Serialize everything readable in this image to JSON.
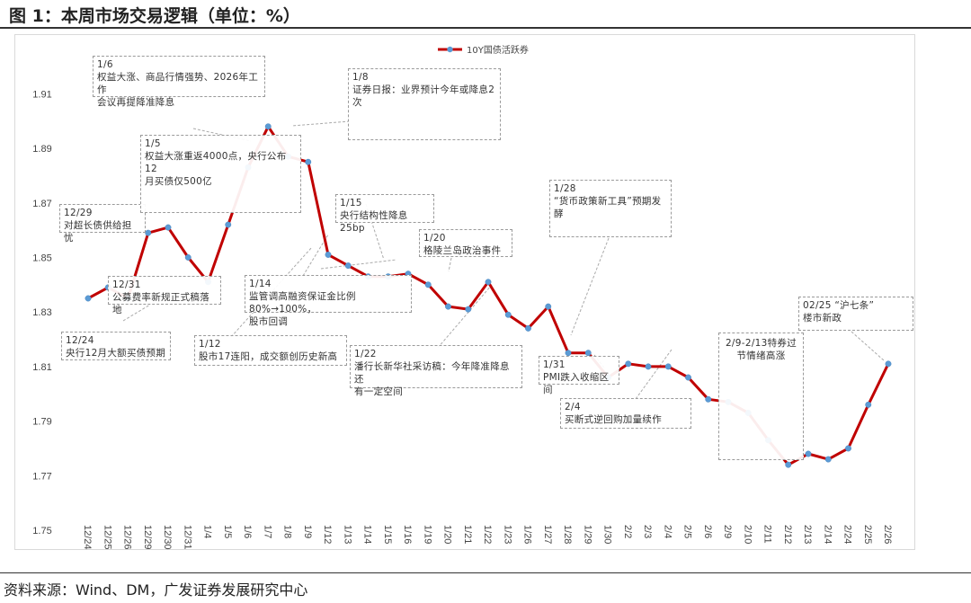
{
  "figure": {
    "title": "图 1：本周市场交易逻辑（单位：%）",
    "source": "资料来源：Wind、DM，广发证券发展研究中心"
  },
  "chart_data": {
    "type": "line",
    "title": "",
    "xlabel": "",
    "ylabel": "",
    "ylim": [
      1.75,
      1.92
    ],
    "yticks": [
      "1.75",
      "1.77",
      "1.79",
      "1.81",
      "1.83",
      "1.85",
      "1.87",
      "1.89",
      "1.91"
    ],
    "grid": false,
    "legend_position": "top-center",
    "series_color": "#c00000",
    "marker_color": "#5b9bd5",
    "categories": [
      "12/24",
      "12/25",
      "12/26",
      "12/29",
      "12/30",
      "12/31",
      "1/4",
      "1/5",
      "1/6",
      "1/7",
      "1/8",
      "1/9",
      "1/12",
      "1/13",
      "1/14",
      "1/15",
      "1/16",
      "1/19",
      "1/20",
      "1/21",
      "1/22",
      "1/23",
      "1/26",
      "1/27",
      "1/28",
      "1/29",
      "1/30",
      "2/2",
      "2/3",
      "2/4",
      "2/5",
      "2/6",
      "2/9",
      "2/10",
      "2/11",
      "2/12",
      "2/13",
      "2/14",
      "2/24",
      "2/25",
      "2/26"
    ],
    "series": [
      {
        "name": "10Y国债活跃券",
        "values": [
          1.835,
          1.839,
          1.835,
          1.859,
          1.861,
          1.85,
          1.841,
          1.862,
          1.883,
          1.898,
          1.887,
          1.885,
          1.851,
          1.847,
          1.843,
          1.843,
          1.844,
          1.84,
          1.832,
          1.831,
          1.841,
          1.829,
          1.824,
          1.832,
          1.815,
          1.815,
          1.806,
          1.811,
          1.81,
          1.81,
          1.806,
          1.798,
          1.797,
          1.793,
          1.783,
          1.774,
          1.778,
          1.776,
          1.78,
          1.796,
          1.811
        ]
      }
    ],
    "annotations": [
      {
        "id": "ann-1224",
        "text": "12/24\n央行12月大额买债预期"
      },
      {
        "id": "ann-1229",
        "text": "12/29\n对超长债供给担忧"
      },
      {
        "id": "ann-1231",
        "text": "12/31\n公募费率新规正式稿落地"
      },
      {
        "id": "ann-0105",
        "text": "1/5\n权益大涨重返4000点，央行公布12\n月买债仅500亿"
      },
      {
        "id": "ann-0106",
        "text": "1/6\n权益大涨、商品行情强势、2026年工作\n会议再提降准降息"
      },
      {
        "id": "ann-0108",
        "text": "1/8\n证券日报：业界预计今年或降息2\n次"
      },
      {
        "id": "ann-0112",
        "text": "1/12\n股市17连阳，成交额创历史新高"
      },
      {
        "id": "ann-0114",
        "text": "1/14\n监管调高融资保证金比例80%→100%，\n股市回调"
      },
      {
        "id": "ann-0115",
        "text": "1/15\n央行结构性降息25bp"
      },
      {
        "id": "ann-0120",
        "text": "1/20\n格陵兰岛政治事件"
      },
      {
        "id": "ann-0122",
        "text": "1/22\n潘行长新华社采访稿：今年降准降息还\n有一定空间"
      },
      {
        "id": "ann-0128",
        "text": "1/28\n“货币政策新工具”预期发\n酵"
      },
      {
        "id": "ann-0131",
        "text": "1/31\nPMI跌入收缩区间"
      },
      {
        "id": "ann-0204",
        "text": "2/4\n买断式逆回购加量续作"
      },
      {
        "id": "ann-0209",
        "text": "2/9-2/13特券过\n节情绪高涨"
      },
      {
        "id": "ann-0225",
        "text": "02/25 “沪七条”\n楼市新政"
      }
    ]
  }
}
